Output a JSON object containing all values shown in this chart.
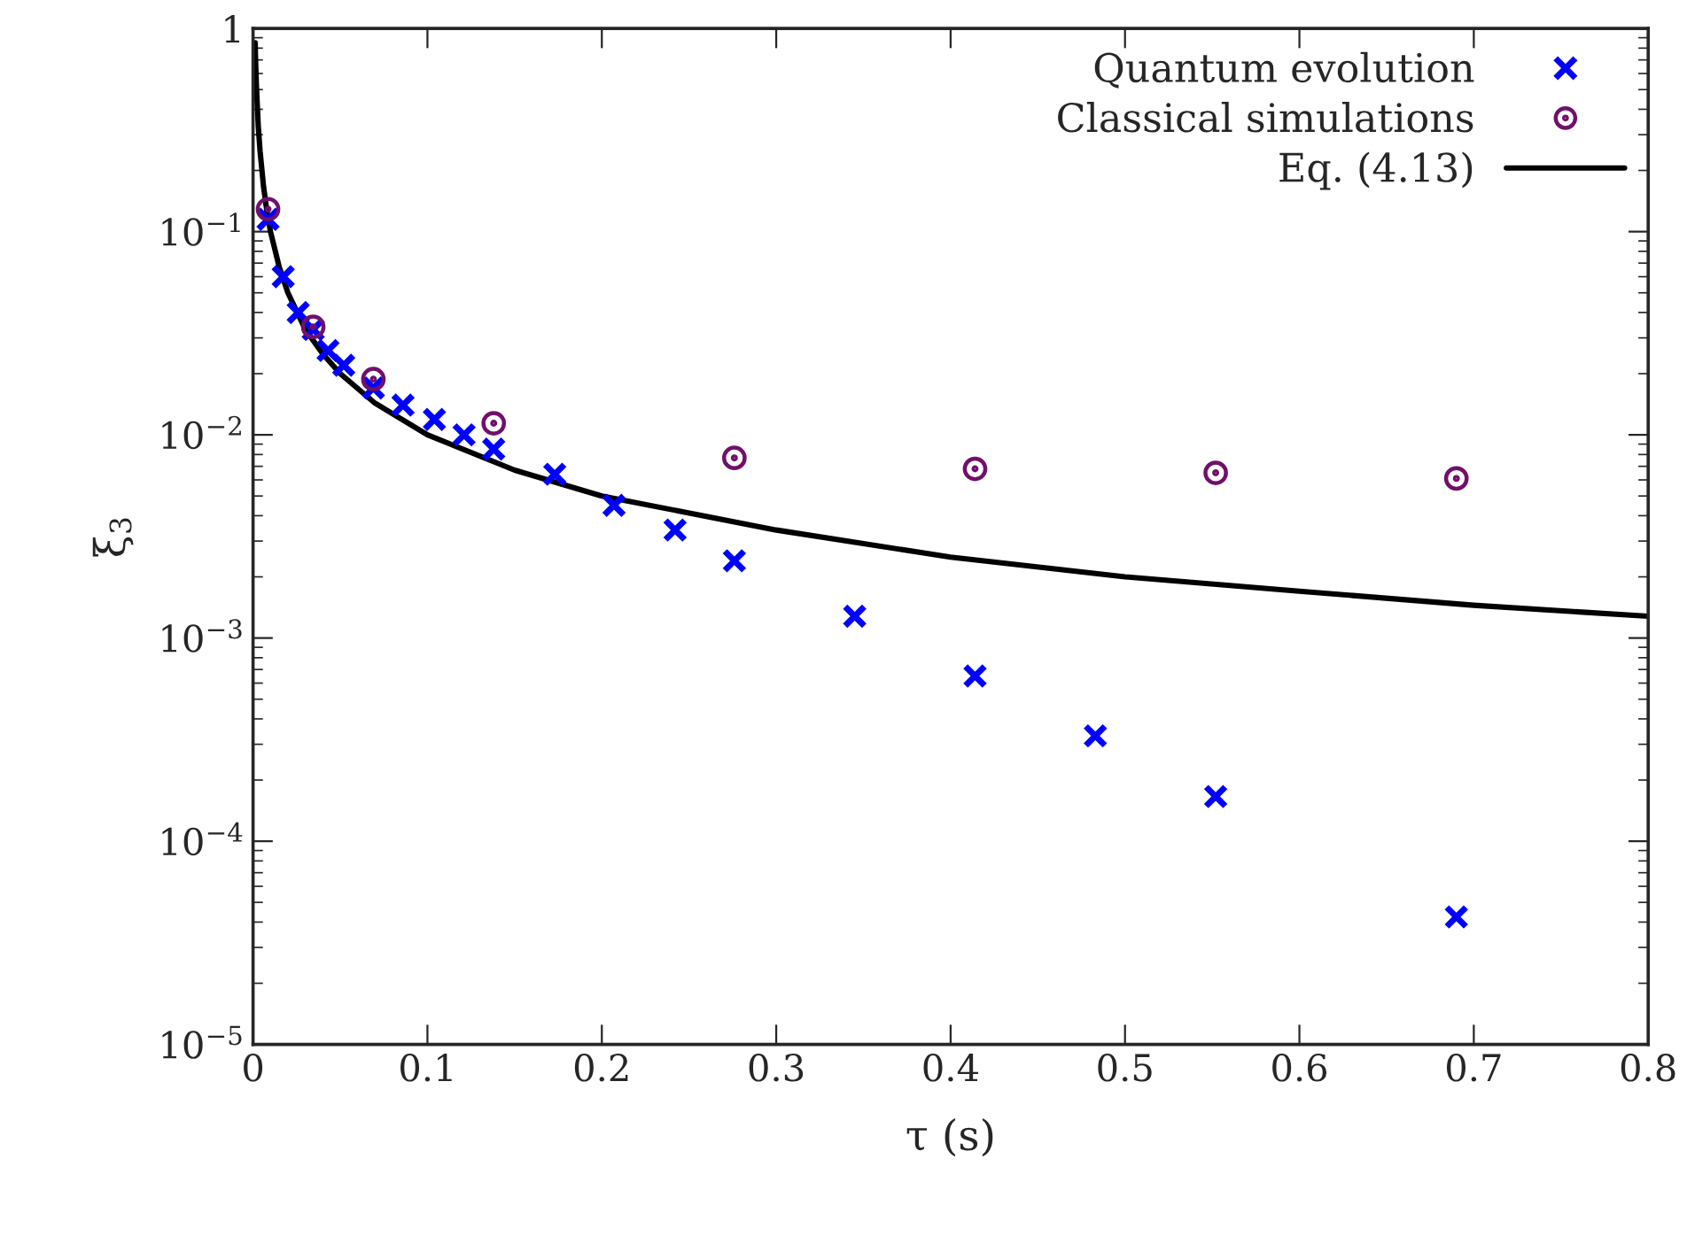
{
  "chart_data": {
    "type": "scatter",
    "xlabel": "τ (s)",
    "ylabel": "ξ$_{3}$",
    "log": "y",
    "grid": false,
    "legend": "top right",
    "xlim": [
      0,
      0.8
    ],
    "xticks": [
      0,
      0.1,
      0.2,
      0.3,
      0.4,
      0.5,
      0.6,
      0.7,
      0.8
    ],
    "ylim": [
      1e-05,
      1
    ],
    "yticks": [
      {
        "value": 1e-05,
        "label": "10$^{−5}$"
      },
      {
        "value": 0.0001,
        "label": "10$^{−4}$"
      },
      {
        "value": 0.001,
        "label": "10$^{−3}$"
      },
      {
        "value": 0.01,
        "label": "10$^{−2}$"
      },
      {
        "value": 0.1,
        "label": "10$^{−1}$"
      },
      {
        "value": 1,
        "label": "1"
      }
    ],
    "series": [
      {
        "name": "Quantum evolution",
        "marker": "cross",
        "color": "#0000ff",
        "x": [
          0.0086,
          0.0173,
          0.0259,
          0.0345,
          0.043,
          0.052,
          0.069,
          0.086,
          0.104,
          0.121,
          0.138,
          0.173,
          0.207,
          0.242,
          0.276,
          0.345,
          0.414,
          0.483,
          0.552,
          0.69
        ],
        "values": [
          0.115,
          0.06,
          0.04,
          0.033,
          0.026,
          0.022,
          0.017,
          0.014,
          0.0119,
          0.01,
          0.0085,
          0.0064,
          0.0045,
          0.0034,
          0.0024,
          0.00128,
          0.00065,
          0.00033,
          0.000166,
          4.24e-05
        ]
      },
      {
        "name": "Classical simulations",
        "marker": "circle",
        "color": "#70106a",
        "x": [
          0.0086,
          0.0345,
          0.069,
          0.138,
          0.276,
          0.414,
          0.552,
          0.69
        ],
        "values": [
          0.129,
          0.034,
          0.0188,
          0.0114,
          0.0077,
          0.0068,
          0.0065,
          0.0061
        ]
      },
      {
        "name": "Eq. (4.13)",
        "type": "line",
        "marker": "none",
        "line_style": "solid",
        "color": "#000000",
        "x": [
          0.0012,
          0.0015,
          0.002,
          0.003,
          0.004,
          0.006,
          0.008,
          0.01,
          0.015,
          0.02,
          0.03,
          0.04,
          0.05,
          0.07,
          0.1,
          0.15,
          0.2,
          0.3,
          0.4,
          0.5,
          0.6,
          0.7,
          0.8
        ],
        "values": [
          0.85,
          0.67,
          0.5,
          0.33,
          0.25,
          0.167,
          0.125,
          0.1,
          0.067,
          0.05,
          0.033,
          0.025,
          0.02,
          0.0143,
          0.01,
          0.0067,
          0.005,
          0.0034,
          0.0025,
          0.002,
          0.0017,
          0.00145,
          0.00128
        ]
      }
    ]
  }
}
